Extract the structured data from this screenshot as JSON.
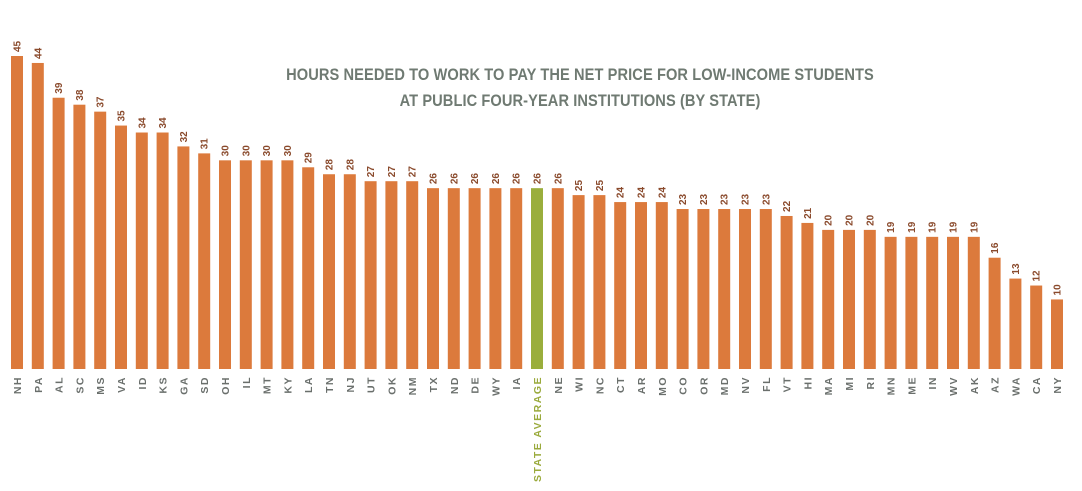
{
  "chart_data": {
    "type": "bar",
    "title": "HOURS NEEDED TO WORK TO PAY THE NET PRICE FOR LOW-INCOME STUDENTS",
    "subtitle": "AT PUBLIC FOUR-YEAR INSTITUTIONS (BY STATE)",
    "categories": [
      "NH",
      "PA",
      "AL",
      "SC",
      "MS",
      "VA",
      "ID",
      "KS",
      "GA",
      "SD",
      "OH",
      "IL",
      "MT",
      "KY",
      "LA",
      "TN",
      "NJ",
      "UT",
      "OK",
      "NM",
      "TX",
      "ND",
      "DE",
      "WY",
      "IA",
      "STATE AVERAGE",
      "NE",
      "WI",
      "NC",
      "CT",
      "AR",
      "MO",
      "CO",
      "OR",
      "MD",
      "NV",
      "FL",
      "VT",
      "HI",
      "MA",
      "MI",
      "RI",
      "MN",
      "ME",
      "IN",
      "WV",
      "AK",
      "AZ",
      "WA",
      "CA",
      "NY"
    ],
    "values": [
      45,
      44,
      39,
      38,
      37,
      35,
      34,
      34,
      32,
      31,
      30,
      30,
      30,
      30,
      29,
      28,
      28,
      27,
      27,
      27,
      26,
      26,
      26,
      26,
      26,
      26,
      26,
      25,
      25,
      24,
      24,
      24,
      23,
      23,
      23,
      23,
      23,
      22,
      21,
      20,
      20,
      20,
      19,
      19,
      19,
      19,
      19,
      16,
      13,
      12,
      10
    ],
    "highlight_category": "STATE AVERAGE",
    "ylim": [
      0,
      45
    ],
    "grid": false,
    "colors": {
      "bar": "#dc7a3c",
      "highlight": "#9aae3c",
      "value_label": "#8a4a2c",
      "category_label": "#6a6f6c",
      "title": "#6f7a72"
    }
  }
}
